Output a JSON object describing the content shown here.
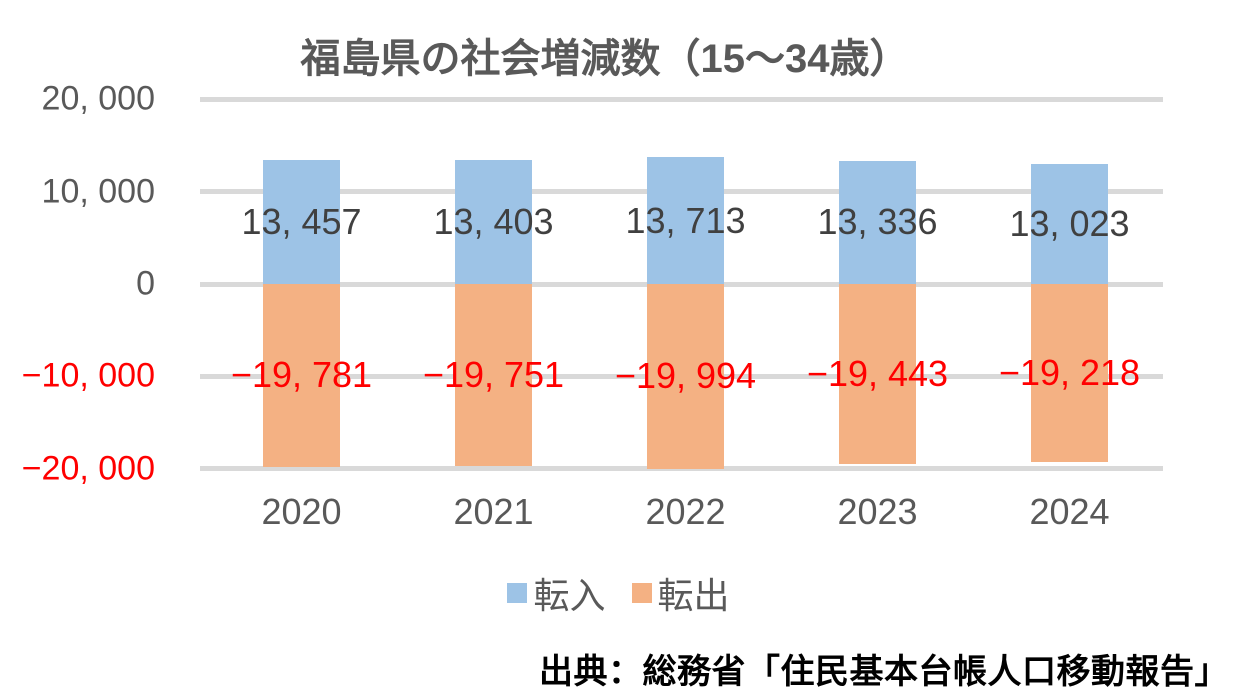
{
  "chart_data": {
    "type": "bar",
    "title": "福島県の社会増減数（15～34歳）",
    "title_color": "#595959",
    "categories": [
      "2020",
      "2021",
      "2022",
      "2023",
      "2024"
    ],
    "series": [
      {
        "name": "転入",
        "color": "#9DC3E6",
        "values": [
          13457,
          13403,
          13713,
          13336,
          13023
        ],
        "labels": [
          "13, 457",
          "13, 403",
          "13, 713",
          "13, 336",
          "13, 023"
        ],
        "label_color": "#404040"
      },
      {
        "name": "転出",
        "color": "#F4B183",
        "values": [
          -19781,
          -19751,
          -19994,
          -19443,
          -19218
        ],
        "labels": [
          "−19, 781",
          "−19, 751",
          "−19, 994",
          "−19, 443",
          "−19, 218"
        ],
        "label_color": "#FF0000"
      }
    ],
    "y_axis": {
      "min": -20000,
      "max": 20000,
      "interval": 10000,
      "ticks": [
        {
          "value": 20000,
          "label": "20, 000"
        },
        {
          "value": 10000,
          "label": "10, 000"
        },
        {
          "value": 0,
          "label": "0"
        },
        {
          "value": -10000,
          "label": "−10, 000"
        },
        {
          "value": -20000,
          "label": "−20, 000"
        }
      ],
      "positive_color": "#595959",
      "negative_color": "#FF0000"
    },
    "grid": true,
    "gridline_color": "#D9D9D9",
    "legend_position": "bottom",
    "category_label_color": "#595959"
  },
  "source_note": "出典：総務省「住民基本台帳人口移動報告」"
}
